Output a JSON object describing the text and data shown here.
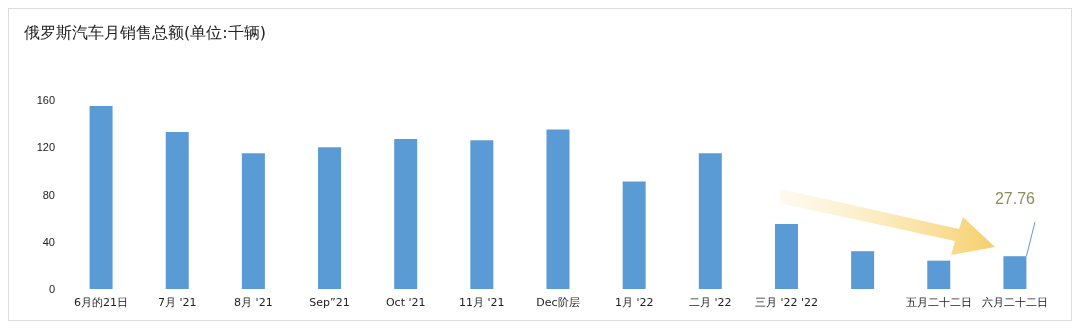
{
  "chart_data": {
    "type": "bar",
    "title": "俄罗斯汽车月销售总额(单位:千辆)",
    "categories": [
      "6月的21日",
      "7月 '21",
      "8月 '21",
      "Sep”21",
      "Oct '21",
      "11月 '21",
      "Dec阶层",
      "1月 '22",
      "二月 '22",
      "三月 '22 '22",
      null,
      "五月二十二日",
      "六月二十二日"
    ],
    "values": [
      155,
      133,
      115,
      120,
      127,
      126,
      135,
      91,
      115,
      55,
      32,
      24,
      27.76
    ],
    "value_labels": [
      null,
      null,
      null,
      null,
      null,
      null,
      null,
      null,
      null,
      null,
      null,
      null,
      "27.76"
    ],
    "color": "#5b9bd5",
    "ylim": [
      0,
      160
    ],
    "yticks": [
      0,
      40,
      80,
      120,
      160
    ],
    "grid": false
  }
}
